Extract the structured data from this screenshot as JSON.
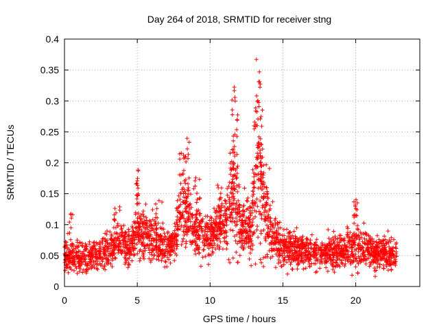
{
  "chart_data": {
    "type": "scatter",
    "title": "Day 264 of 2018, SRMTID for receiver stng",
    "xlabel": "GPS time / hours",
    "ylabel": "SRMTID / TECUs",
    "xlim": [
      0,
      24.4
    ],
    "ylim": [
      0,
      0.4
    ],
    "xticks": [
      0,
      5,
      10,
      15,
      20
    ],
    "yticks": [
      0,
      0.05,
      0.1,
      0.15,
      0.2,
      0.25,
      0.3,
      0.35,
      0.4
    ],
    "xtick_labels": [
      "0",
      "5",
      "10",
      "15",
      "20"
    ],
    "ytick_labels": [
      "0",
      "0.05",
      "0.1",
      "0.15",
      "0.2",
      "0.25",
      "0.3",
      "0.35",
      "0.4"
    ],
    "grid": true,
    "marker": "+",
    "marker_color": "#ff0000",
    "x_data_end": 22.8,
    "series": [
      {
        "name": "SRMTID",
        "profile": [
          [
            0.0,
            0.055,
            0.018
          ],
          [
            1.0,
            0.045,
            0.016
          ],
          [
            2.0,
            0.05,
            0.016
          ],
          [
            3.0,
            0.06,
            0.018
          ],
          [
            3.7,
            0.075,
            0.02
          ],
          [
            4.5,
            0.062,
            0.018
          ],
          [
            5.0,
            0.095,
            0.025
          ],
          [
            6.0,
            0.075,
            0.022
          ],
          [
            7.0,
            0.062,
            0.018
          ],
          [
            7.6,
            0.075,
            0.02
          ],
          [
            8.0,
            0.12,
            0.035
          ],
          [
            8.5,
            0.11,
            0.03
          ],
          [
            9.0,
            0.085,
            0.022
          ],
          [
            9.5,
            0.09,
            0.022
          ],
          [
            10.0,
            0.075,
            0.02
          ],
          [
            10.5,
            0.105,
            0.025
          ],
          [
            11.0,
            0.1,
            0.025
          ],
          [
            11.6,
            0.14,
            0.06
          ],
          [
            12.1,
            0.1,
            0.03
          ],
          [
            12.5,
            0.08,
            0.02
          ],
          [
            13.0,
            0.12,
            0.05
          ],
          [
            13.4,
            0.18,
            0.08
          ],
          [
            13.8,
            0.12,
            0.04
          ],
          [
            14.3,
            0.085,
            0.025
          ],
          [
            15.0,
            0.065,
            0.02
          ],
          [
            16.0,
            0.06,
            0.018
          ],
          [
            17.0,
            0.055,
            0.016
          ],
          [
            18.0,
            0.055,
            0.016
          ],
          [
            19.0,
            0.055,
            0.016
          ],
          [
            20.0,
            0.07,
            0.025
          ],
          [
            20.5,
            0.06,
            0.018
          ],
          [
            21.5,
            0.055,
            0.016
          ],
          [
            22.8,
            0.05,
            0.016
          ]
        ],
        "clusters": [
          [
            4.92,
            5.08,
            0.13,
            0.19,
            16
          ],
          [
            7.9,
            8.6,
            0.15,
            0.245,
            26
          ],
          [
            8.0,
            9.3,
            0.13,
            0.19,
            20
          ],
          [
            10.4,
            10.8,
            0.12,
            0.165,
            8
          ],
          [
            11.45,
            11.9,
            0.15,
            0.325,
            45
          ],
          [
            12.2,
            12.6,
            0.12,
            0.16,
            8
          ],
          [
            13.0,
            13.5,
            0.17,
            0.382,
            45
          ],
          [
            13.55,
            14.1,
            0.13,
            0.2,
            20
          ],
          [
            19.85,
            20.15,
            0.11,
            0.145,
            12
          ],
          [
            3.4,
            3.8,
            0.1,
            0.13,
            8
          ],
          [
            6.2,
            6.8,
            0.1,
            0.14,
            10
          ],
          [
            0.3,
            0.6,
            0.09,
            0.12,
            6
          ]
        ],
        "samples": 2600
      }
    ]
  }
}
